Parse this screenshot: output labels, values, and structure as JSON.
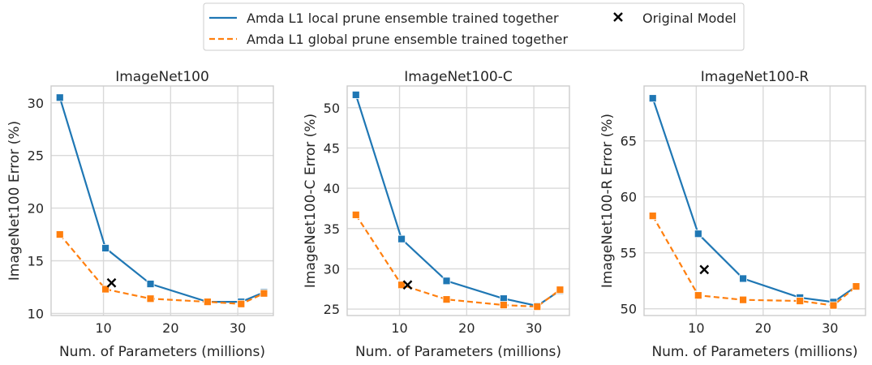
{
  "legend": {
    "items": [
      {
        "label": "Amda L1 local prune ensemble trained together",
        "style": "solid-line",
        "color": "#1f77b4"
      },
      {
        "label": "Amda L1 global prune ensemble trained together",
        "style": "dashed-line",
        "color": "#ff7f0e"
      },
      {
        "label": "Original Model",
        "style": "x-marker",
        "color": "#000000"
      }
    ]
  },
  "chart_data": [
    {
      "type": "line",
      "title": "ImageNet100",
      "xlabel": "Num. of Parameters (millions)",
      "ylabel": "ImageNet100 Error (%)",
      "xlim": [
        2.2,
        35.3
      ],
      "ylim": [
        9.8,
        31.6
      ],
      "xticks": [
        10,
        20,
        30
      ],
      "yticks": [
        10,
        15,
        20,
        25,
        30
      ],
      "grid": true,
      "series": [
        {
          "name": "Amda L1 local prune ensemble trained together",
          "color": "#1f77b4",
          "dash": "solid",
          "marker": "square",
          "x": [
            3.5,
            10.3,
            17.0,
            25.5,
            30.5,
            33.9
          ],
          "y": [
            30.5,
            16.2,
            12.8,
            11.1,
            11.1,
            12.0
          ]
        },
        {
          "name": "Amda L1 global prune ensemble trained together",
          "color": "#ff7f0e",
          "dash": "dashed",
          "marker": "square",
          "x": [
            3.5,
            10.3,
            17.0,
            25.5,
            30.5,
            33.9
          ],
          "y": [
            17.5,
            12.3,
            11.4,
            11.1,
            10.9,
            11.9
          ]
        },
        {
          "name": "Original Model",
          "color": "#000000",
          "marker": "x",
          "x": [
            11.2
          ],
          "y": [
            12.9
          ]
        }
      ]
    },
    {
      "type": "line",
      "title": "ImageNet100-C",
      "xlabel": "Num. of Parameters (millions)",
      "ylabel": "ImageNet100-C Error (%)",
      "xlim": [
        2.2,
        35.3
      ],
      "ylim": [
        24.2,
        52.7
      ],
      "xticks": [
        10,
        20,
        30
      ],
      "yticks": [
        25,
        30,
        35,
        40,
        45,
        50
      ],
      "grid": true,
      "series": [
        {
          "name": "Amda L1 local prune ensemble trained together",
          "color": "#1f77b4",
          "dash": "solid",
          "marker": "square",
          "x": [
            3.5,
            10.3,
            17.0,
            25.5,
            30.5,
            33.9
          ],
          "y": [
            51.6,
            33.7,
            28.5,
            26.3,
            25.4,
            27.3
          ]
        },
        {
          "name": "Amda L1 global prune ensemble trained together",
          "color": "#ff7f0e",
          "dash": "dashed",
          "marker": "square",
          "x": [
            3.5,
            10.3,
            17.0,
            25.5,
            30.5,
            33.9
          ],
          "y": [
            36.7,
            28.0,
            26.2,
            25.5,
            25.3,
            27.4
          ]
        },
        {
          "name": "Original Model",
          "color": "#000000",
          "marker": "x",
          "x": [
            11.2
          ],
          "y": [
            28.0
          ]
        }
      ]
    },
    {
      "type": "line",
      "title": "ImageNet100-R",
      "xlabel": "Num. of Parameters (millions)",
      "ylabel": "ImageNet100-R Error (%)",
      "xlim": [
        2.2,
        35.3
      ],
      "ylim": [
        49.4,
        69.9
      ],
      "xticks": [
        10,
        20,
        30
      ],
      "yticks": [
        50,
        55,
        60,
        65
      ],
      "grid": true,
      "series": [
        {
          "name": "Amda L1 local prune ensemble trained together",
          "color": "#1f77b4",
          "dash": "solid",
          "marker": "square",
          "x": [
            3.5,
            10.3,
            17.0,
            25.5,
            30.5,
            33.9
          ],
          "y": [
            68.8,
            56.7,
            52.7,
            51.0,
            50.6,
            52.0
          ]
        },
        {
          "name": "Amda L1 global prune ensemble trained together",
          "color": "#ff7f0e",
          "dash": "dashed",
          "marker": "square",
          "x": [
            3.5,
            10.3,
            17.0,
            25.5,
            30.5,
            33.9
          ],
          "y": [
            58.3,
            51.2,
            50.8,
            50.7,
            50.3,
            52.0
          ]
        },
        {
          "name": "Original Model",
          "color": "#000000",
          "marker": "x",
          "x": [
            11.2
          ],
          "y": [
            53.5
          ]
        }
      ]
    }
  ]
}
